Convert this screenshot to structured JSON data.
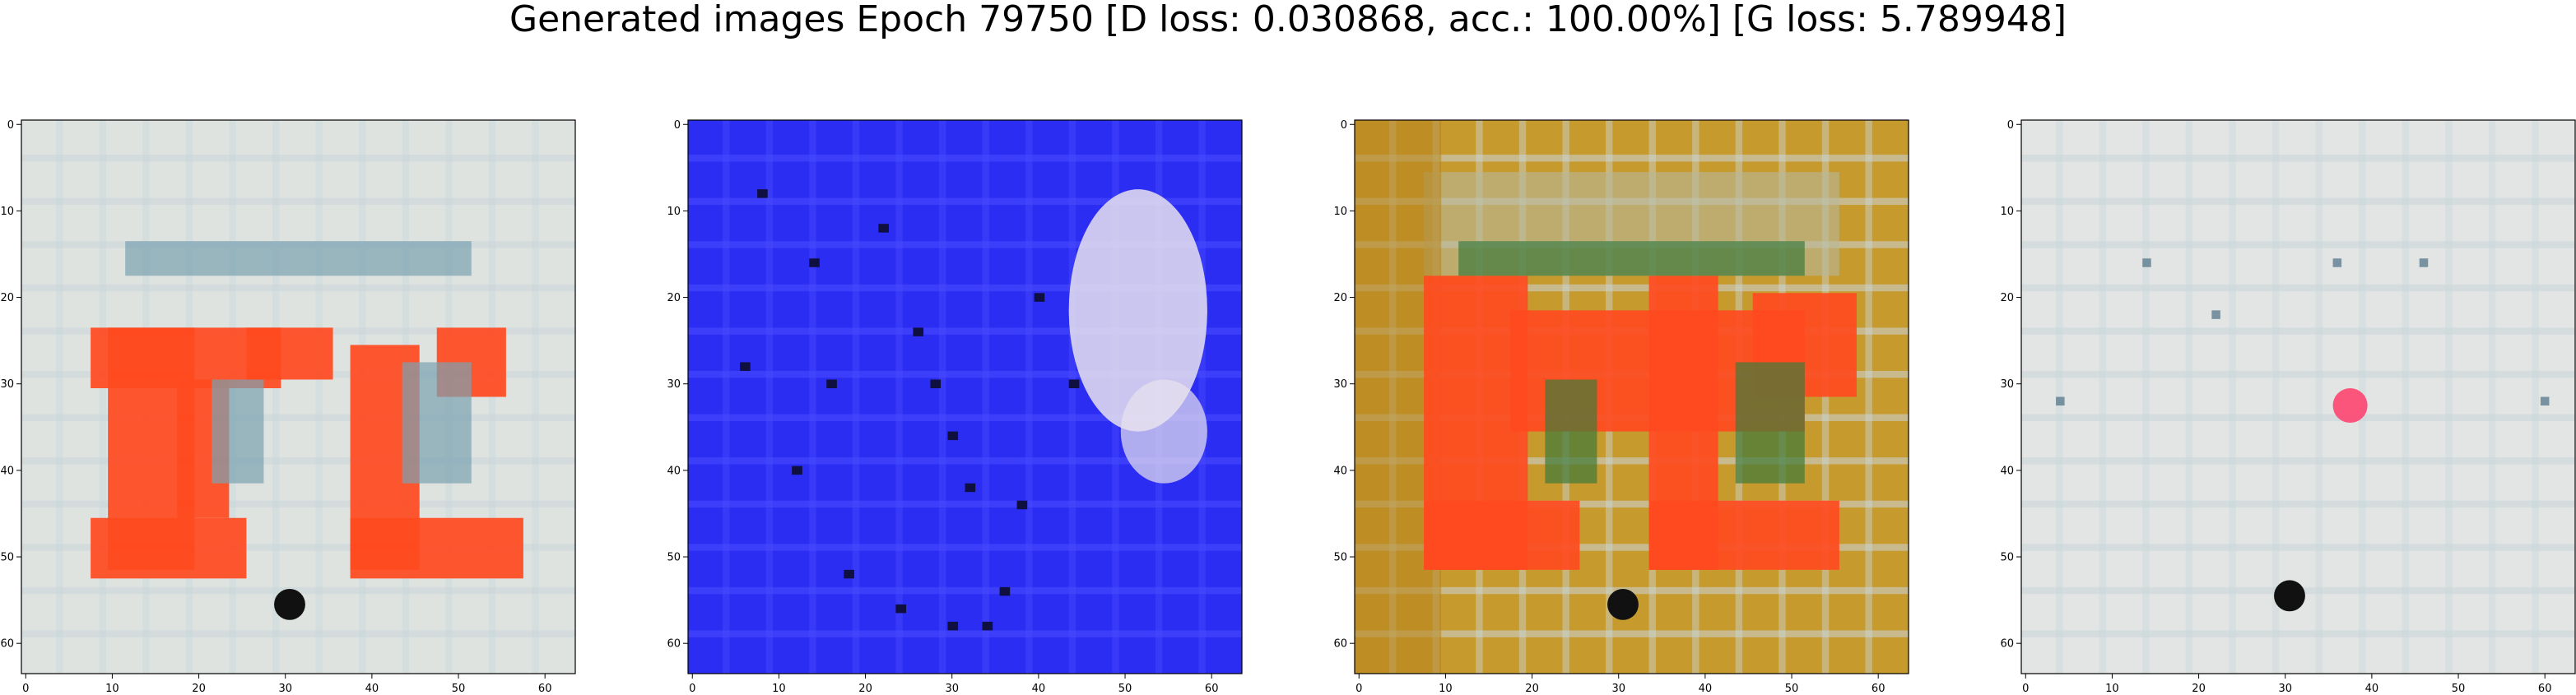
{
  "title": "Generated images Epoch 79750 [D loss: 0.030868, acc.: 100.00%] [G loss: 5.789948]",
  "chart_data": [
    {
      "type": "heatmap",
      "description_colors": {
        "background": "#dfe3e0",
        "accent": "#ff4a20",
        "secondary": "#7aa3b0"
      },
      "xlim": [
        -0.5,
        63.5
      ],
      "ylim": [
        63.5,
        -0.5
      ],
      "xticks": [
        0,
        10,
        20,
        30,
        40,
        50,
        60
      ],
      "yticks": [
        0,
        10,
        20,
        30,
        40,
        50,
        60
      ]
    },
    {
      "type": "heatmap",
      "description_colors": {
        "background": "#2b2df2",
        "accent": "#e8e2ef",
        "secondary": "#101040"
      },
      "xlim": [
        -0.5,
        63.5
      ],
      "ylim": [
        63.5,
        -0.5
      ],
      "xticks": [
        0,
        10,
        20,
        30,
        40,
        50,
        60
      ],
      "yticks": [
        0,
        10,
        20,
        30,
        40,
        50,
        60
      ]
    },
    {
      "type": "heatmap",
      "description_colors": {
        "background": "#c79a2e",
        "accent": "#ff4a20",
        "secondary": "#3f7a3a"
      },
      "xlim": [
        -0.5,
        63.5
      ],
      "ylim": [
        63.5,
        -0.5
      ],
      "xticks": [
        0,
        10,
        20,
        30,
        40,
        50,
        60
      ],
      "yticks": [
        0,
        10,
        20,
        30,
        40,
        50,
        60
      ]
    },
    {
      "type": "heatmap",
      "description_colors": {
        "background": "#e2e5e3",
        "accent": "#ff3c6a",
        "secondary": "#4b6f84"
      },
      "xlim": [
        -0.5,
        63.5
      ],
      "ylim": [
        63.5,
        -0.5
      ],
      "xticks": [
        0,
        10,
        20,
        30,
        40,
        50,
        60
      ],
      "yticks": [
        0,
        10,
        20,
        30,
        40,
        50,
        60
      ]
    }
  ]
}
